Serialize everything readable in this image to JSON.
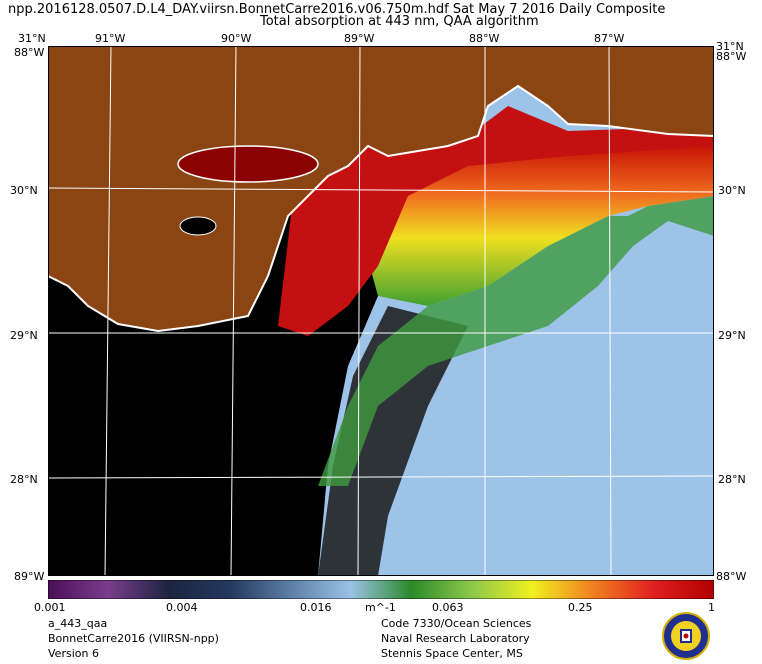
{
  "header": {
    "line1": "npp.2016128.0507.D.L4_DAY.viirsn.BonnetCarre2016.v06.750m.hdf     Sat May  7 2016 Daily Composite",
    "line2": "Total absorption at 443 nm, QAA algorithm"
  },
  "map": {
    "lon_ticks": [
      "91°W",
      "90°W",
      "89°W",
      "88°W",
      "87°W"
    ],
    "lat_ticks": [
      "30°N",
      "29°N",
      "28°N"
    ],
    "corner_top_left": "31°N",
    "corner_top_right": "31°N",
    "corner_left_top": "88°W",
    "corner_right_top": "88°W",
    "corner_bottom_left": "89°W",
    "corner_bottom_right": "88°W"
  },
  "colorbar": {
    "labels": [
      "0.001",
      "0.004",
      "0.016",
      "m^-1",
      "0.063",
      "0.25",
      "1"
    ],
    "stops": [
      "#4a0f58",
      "#7a3d8c",
      "#1c2440",
      "#24395e",
      "#5d7ea6",
      "#9bc2e6",
      "#2a8a2a",
      "#8cc84a",
      "#f0f020",
      "#f08020",
      "#e02020",
      "#b00000"
    ]
  },
  "footer": {
    "left": [
      "a_443_qaa",
      "BonnetCarre2016 (VIIRSN-npp)",
      "Version 6"
    ],
    "right": [
      "Code 7330/Ocean Sciences",
      "Naval Research Laboratory",
      "Stennis Space Center, MS"
    ]
  },
  "colors": {
    "land": "#8b4513",
    "nodata": "#000000",
    "offshore": "#9dc3e8",
    "grid": "#ffffff"
  }
}
